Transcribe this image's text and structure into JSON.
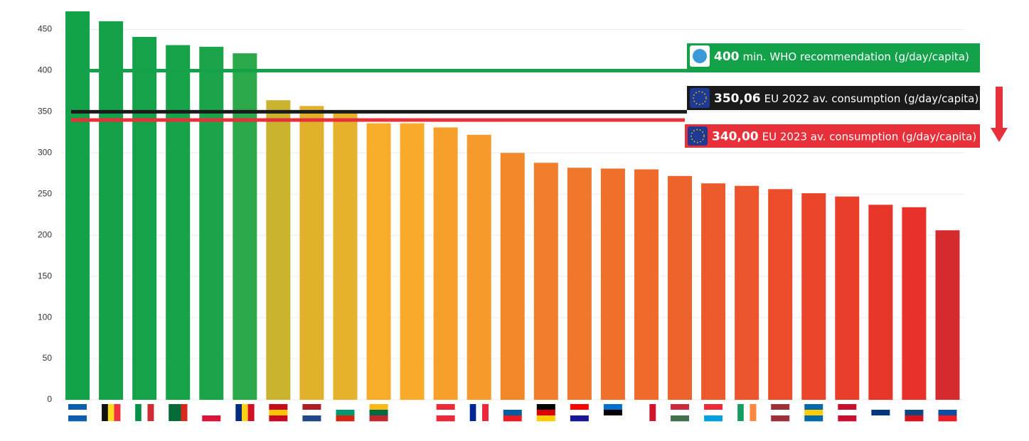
{
  "chart_data": {
    "type": "bar",
    "categories": [
      null,
      null,
      null,
      null,
      null,
      null,
      null,
      null,
      null,
      null,
      null,
      null,
      null,
      null,
      null,
      null,
      null,
      null,
      null,
      null,
      null,
      null,
      null,
      null,
      null,
      null,
      null
    ],
    "values": [
      472,
      460,
      441,
      431,
      429,
      421,
      364,
      357,
      351,
      336,
      336,
      331,
      322,
      300,
      288,
      282,
      281,
      280,
      272,
      263,
      260,
      256,
      251,
      247,
      237,
      234,
      206
    ],
    "colors": [
      "#13a14a",
      "#14a14a",
      "#15a24a",
      "#17a34a",
      "#1ba44a",
      "#2aa84a",
      "#c9b32e",
      "#e2b12c",
      "#e6b12c",
      "#f8ad2a",
      "#f8ab2a",
      "#f6a02b",
      "#f59a2b",
      "#f2882b",
      "#f07e2b",
      "#f0772b",
      "#ef702b",
      "#ef6a2b",
      "#ee632b",
      "#ed5a2b",
      "#ec542b",
      "#eb4d2b",
      "#ea452a",
      "#e93e2a",
      "#e8352a",
      "#e8312a",
      "#d52b2e"
    ],
    "ylim": [
      0,
      472
    ],
    "yticks": [
      0,
      50,
      100,
      150,
      200,
      250,
      300,
      350,
      400,
      450
    ],
    "grid": true,
    "reference_lines": [
      {
        "value": 400,
        "value_label": "400",
        "label": "min. WHO recommendation  (g/day/capita)",
        "color": "#13a14a"
      },
      {
        "value": 350.06,
        "value_label": "350,06",
        "label": "EU 2022 av. consumption (g/day/capita)",
        "color": "#1a1a1a"
      },
      {
        "value": 340,
        "value_label": "340,00",
        "label": "EU 2023 av. consumption (g/day/capita)",
        "color": "#e8303a"
      }
    ]
  }
}
